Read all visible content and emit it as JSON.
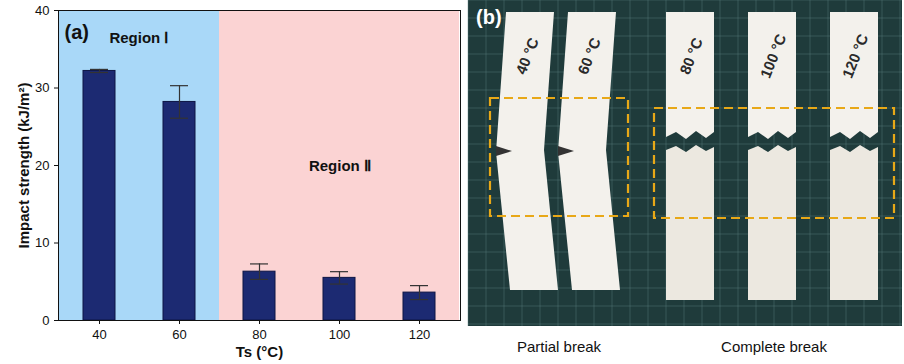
{
  "chart_data": {
    "type": "bar",
    "title": "(a)",
    "x_label": "Ts (°C)",
    "y_label": "Impact strength (kJ/m²)",
    "categories": [
      "40",
      "60",
      "80",
      "100",
      "120"
    ],
    "values": [
      32.2,
      28.2,
      6.3,
      5.5,
      3.6
    ],
    "errors": [
      0.2,
      2.1,
      1.0,
      0.8,
      0.9
    ],
    "color": "#1c2a72",
    "ylim": [
      0,
      40
    ],
    "yticks": [
      0,
      10,
      20,
      30,
      40
    ],
    "regions": [
      {
        "label": "Region Ⅰ",
        "categories": [
          "40",
          "60"
        ],
        "color": "#a9d8f8"
      },
      {
        "label": "Region Ⅱ",
        "categories": [
          "80",
          "100",
          "120"
        ],
        "color": "#fbd3d3"
      }
    ]
  },
  "panel_b": {
    "label": "(b)",
    "groups": [
      {
        "label": "Partial break",
        "specimens": [
          "40 °C",
          "60 °C"
        ]
      },
      {
        "label": "Complete break",
        "specimens": [
          "80 °C",
          "100 °C",
          "120 °C"
        ]
      }
    ]
  }
}
